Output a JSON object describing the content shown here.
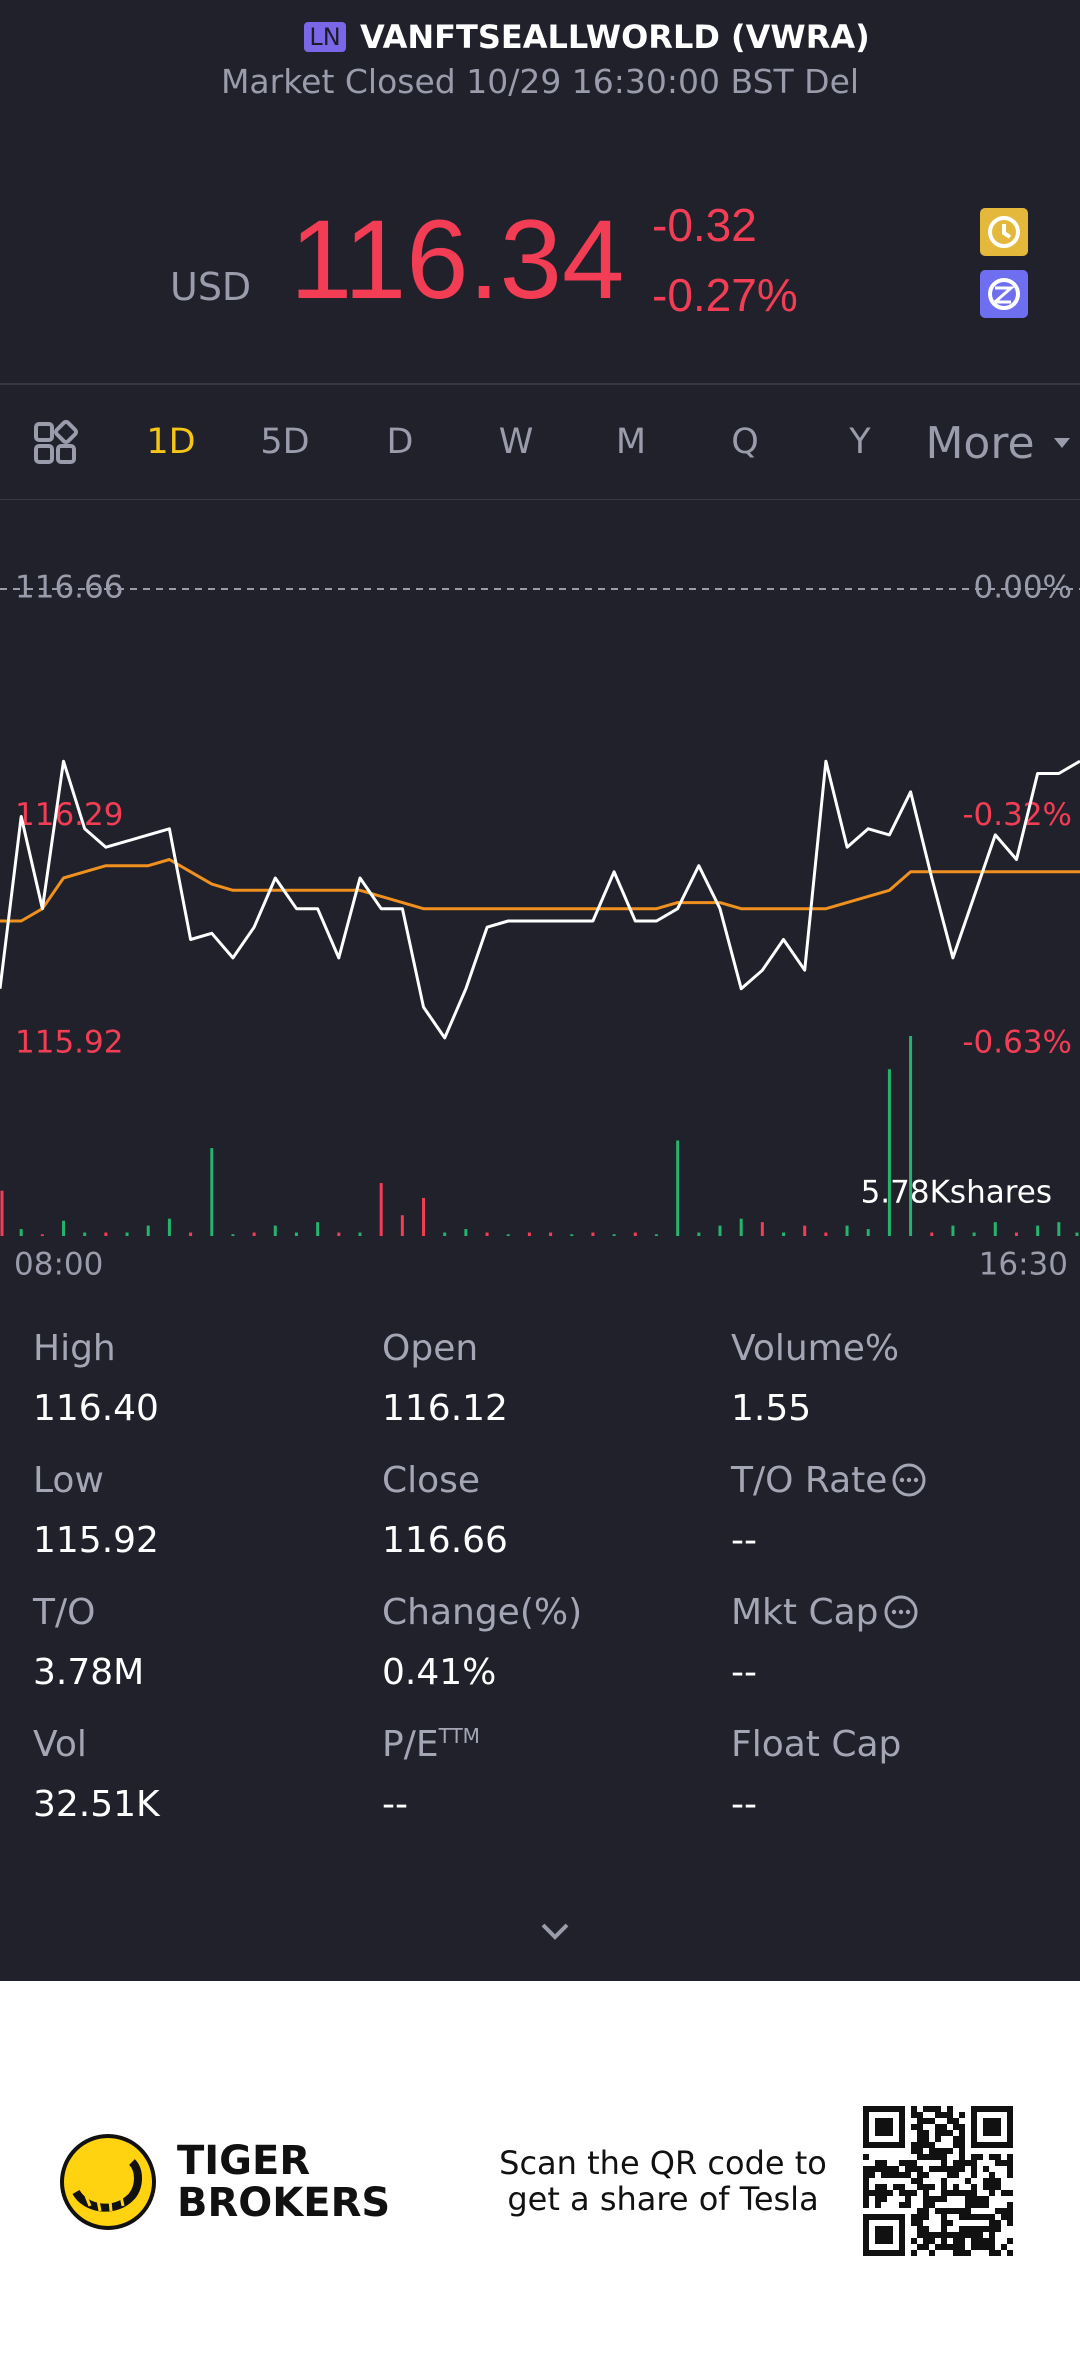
{
  "header": {
    "exchange": "LN",
    "name": "VANFTSEALLWORLD (VWRA)",
    "status": "Market Closed 10/29 16:30:00 BST Del"
  },
  "quote": {
    "currency": "USD",
    "price": "116.34",
    "change": "-0.32",
    "change_pct": "-0.27%"
  },
  "tabs": [
    "1D",
    "5D",
    "D",
    "W",
    "M",
    "Q",
    "Y",
    "More"
  ],
  "chart": {
    "type": "line",
    "ylim": [
      115.92,
      116.66
    ],
    "yticks": [
      116.66,
      116.29,
      115.92
    ],
    "yticks_right": [
      {
        "value": 116.66,
        "label": "0.00%"
      },
      {
        "value": 116.29,
        "label": "-0.32%"
      },
      {
        "value": 115.92,
        "label": "-0.63%"
      }
    ],
    "x_labels": [
      "08:00",
      "16:30"
    ],
    "series": [
      {
        "color": "#ffffff",
        "values": [
          116.01,
          116.29,
          116.14,
          116.38,
          116.27,
          116.24,
          116.25,
          116.26,
          116.27,
          116.09,
          116.1,
          116.06,
          116.11,
          116.19,
          116.14,
          116.14,
          116.06,
          116.19,
          116.14,
          116.14,
          115.98,
          115.93,
          116.01,
          116.11,
          116.12,
          116.12,
          116.12,
          116.12,
          116.12,
          116.2,
          116.12,
          116.12,
          116.14,
          116.21,
          116.14,
          116.01,
          116.04,
          116.09,
          116.04,
          116.38,
          116.24,
          116.27,
          116.26,
          116.33,
          116.19,
          116.06,
          116.16,
          116.26,
          116.22,
          116.36,
          116.36,
          116.38
        ]
      },
      {
        "color": "#f0901e",
        "values": [
          116.12,
          116.12,
          116.14,
          116.19,
          116.2,
          116.21,
          116.21,
          116.21,
          116.22,
          116.2,
          116.18,
          116.17,
          116.17,
          116.17,
          116.17,
          116.17,
          116.17,
          116.17,
          116.16,
          116.15,
          116.14,
          116.14,
          116.14,
          116.14,
          116.14,
          116.14,
          116.14,
          116.14,
          116.14,
          116.14,
          116.14,
          116.14,
          116.15,
          116.15,
          116.15,
          116.14,
          116.14,
          116.14,
          116.14,
          116.14,
          116.15,
          116.16,
          116.17,
          116.2,
          116.2,
          116.2,
          116.2,
          116.2,
          116.2,
          116.2,
          116.2,
          116.2
        ]
      }
    ],
    "volume": {
      "ylim": [
        0,
        5.78
      ],
      "yticks": [
        {
          "value": 5.78,
          "label": "5.78Kshares"
        }
      ],
      "values": [
        1.31,
        0.2,
        0.05,
        0.44,
        0.1,
        0.1,
        0.1,
        0.3,
        0.5,
        0.1,
        2.54,
        0.05,
        0.1,
        0.3,
        0.1,
        0.4,
        0.1,
        0.1,
        1.53,
        0.6,
        1.1,
        0.1,
        0.2,
        0.1,
        0.05,
        0.1,
        0.1,
        0.05,
        0.1,
        0.05,
        0.1,
        0.05,
        2.76,
        0.1,
        0.3,
        0.5,
        0.4,
        0.1,
        0.3,
        0.1,
        0.3,
        0.2,
        4.82,
        5.78,
        0.1,
        0.3,
        0.1,
        0.4,
        0.1,
        0.3,
        0.4,
        0.1
      ],
      "colors": [
        "#f23d55",
        "#25b36e",
        "#f23d55",
        "#25b36e",
        "#25b36e",
        "#f23d55",
        "#25b36e",
        "#25b36e",
        "#25b36e",
        "#f23d55",
        "#25b36e",
        "#25b36e",
        "#f23d55",
        "#25b36e",
        "#25b36e",
        "#25b36e",
        "#f23d55",
        "#25b36e",
        "#f23d55",
        "#f23d55",
        "#f23d55",
        "#25b36e",
        "#25b36e",
        "#f23d55",
        "#25b36e",
        "#f23d55",
        "#f23d55",
        "#25b36e",
        "#f23d55",
        "#25b36e",
        "#f23d55",
        "#25b36e",
        "#25b36e",
        "#25b36e",
        "#25b36e",
        "#25b36e",
        "#f23d55",
        "#25b36e",
        "#f23d55",
        "#f23d55",
        "#25b36e",
        "#25b36e",
        "#25b36e",
        "#25b36e",
        "#f23d55",
        "#25b36e",
        "#25b36e",
        "#25b36e",
        "#f23d55",
        "#25b36e",
        "#25b36e",
        "#25b36e"
      ]
    }
  },
  "stats": [
    {
      "label": "High",
      "value": "116.40"
    },
    {
      "label": "Open",
      "value": "116.12"
    },
    {
      "label": "Volume%",
      "value": "1.55"
    },
    {
      "label": "Low",
      "value": "115.92"
    },
    {
      "label": "Close",
      "value": "116.66"
    },
    {
      "label": "T/O Rate",
      "value": "--",
      "info": true
    },
    {
      "label": "T/O",
      "value": "3.78M"
    },
    {
      "label": "Change(%)",
      "value": "0.41%"
    },
    {
      "label": "Mkt Cap",
      "value": "--",
      "info": true
    },
    {
      "label": "Vol",
      "value": "32.51K"
    },
    {
      "label": "P/E",
      "sup": "TTM",
      "value": "--"
    },
    {
      "label": "Float Cap",
      "value": "--"
    }
  ],
  "footer": {
    "brand_1": "TIGER",
    "brand_2": "BROKERS",
    "promo_1": "Scan the QR code to",
    "promo_2": "get a share of Tesla"
  }
}
